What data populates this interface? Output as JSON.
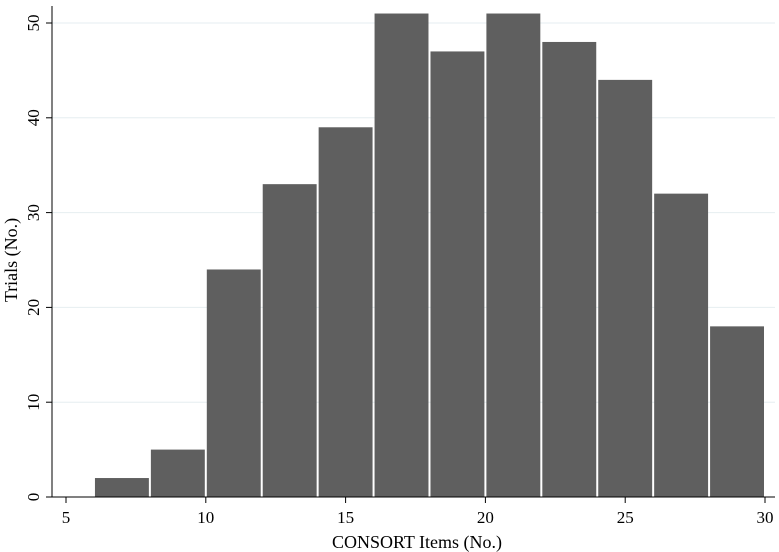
{
  "chart_data": {
    "type": "bar",
    "xlabel": "CONSORT Items (No.)",
    "ylabel": "Trials (No.)",
    "xlim": [
      5,
      30
    ],
    "ylim": [
      0,
      52
    ],
    "xticks": [
      "5",
      "10",
      "15",
      "20",
      "25",
      "30"
    ],
    "yticks": [
      "0",
      "10",
      "20",
      "30",
      "40",
      "50"
    ],
    "grid": "horizontal",
    "bar_color": "#5f5f5f",
    "bins": [
      {
        "start": 6,
        "end": 8,
        "value": 2
      },
      {
        "start": 8,
        "end": 10,
        "value": 5
      },
      {
        "start": 10,
        "end": 12,
        "value": 24
      },
      {
        "start": 12,
        "end": 14,
        "value": 33
      },
      {
        "start": 14,
        "end": 16,
        "value": 39
      },
      {
        "start": 16,
        "end": 18,
        "value": 51
      },
      {
        "start": 18,
        "end": 20,
        "value": 47
      },
      {
        "start": 20,
        "end": 22,
        "value": 51
      },
      {
        "start": 22,
        "end": 24,
        "value": 48
      },
      {
        "start": 24,
        "end": 26,
        "value": 44
      },
      {
        "start": 26,
        "end": 28,
        "value": 32
      },
      {
        "start": 28,
        "end": 30,
        "value": 18
      }
    ]
  }
}
